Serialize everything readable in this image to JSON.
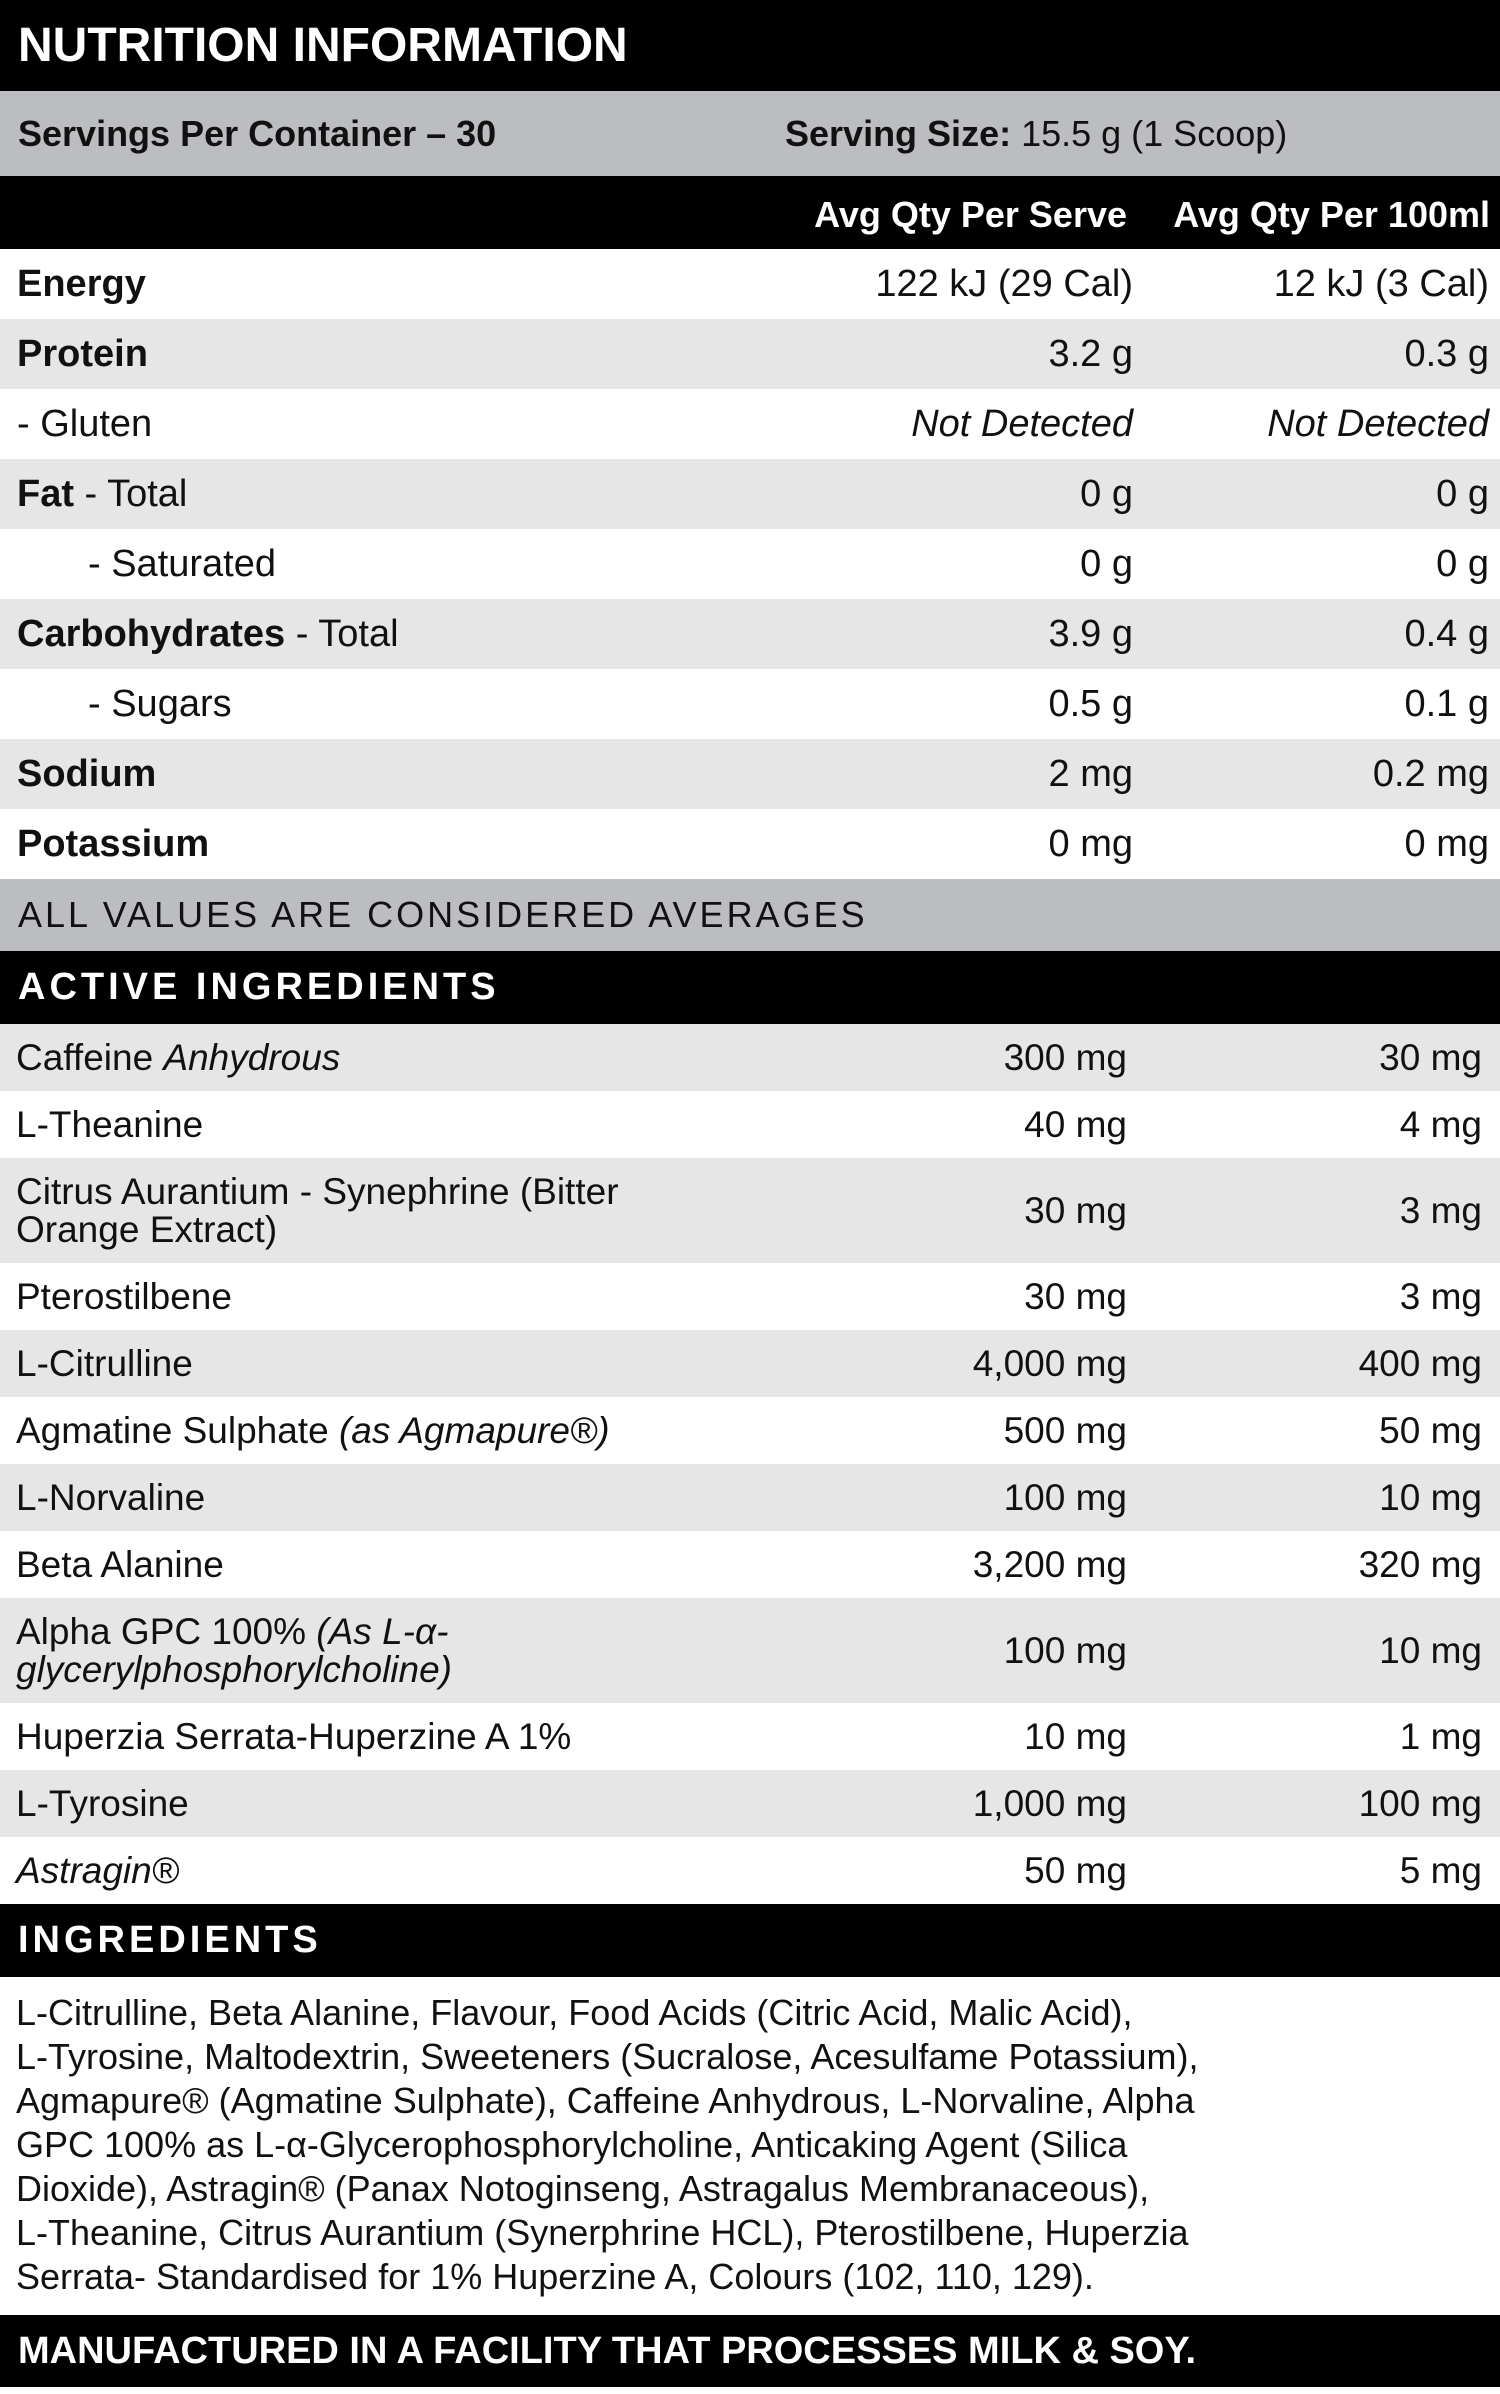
{
  "title": "NUTRITION INFORMATION",
  "servings": {
    "per_container": "Servings Per Container – 30",
    "size_label": "Serving Size:",
    "size_value": " 15.5 g (1 Scoop)"
  },
  "columns": {
    "per_serve": "Avg Qty Per Serve",
    "per_100ml": "Avg Qty Per 100ml"
  },
  "nutrition_rows": [
    {
      "bold": "Energy",
      "normal": "",
      "indent": false,
      "italic_values": false,
      "per_serve": "122 kJ (29 Cal)",
      "per_100ml": "12 kJ (3 Cal)"
    },
    {
      "bold": "Protein",
      "normal": "",
      "indent": false,
      "italic_values": false,
      "per_serve": "3.2 g",
      "per_100ml": "0.3 g"
    },
    {
      "bold": "",
      "normal": "- Gluten",
      "indent": false,
      "italic_values": true,
      "per_serve": "Not Detected",
      "per_100ml": "Not Detected"
    },
    {
      "bold": "Fat",
      "normal": " - Total",
      "indent": false,
      "italic_values": false,
      "per_serve": "0 g",
      "per_100ml": "0 g"
    },
    {
      "bold": "",
      "normal": "- Saturated",
      "indent": true,
      "italic_values": false,
      "per_serve": "0 g",
      "per_100ml": "0 g"
    },
    {
      "bold": "Carbohydrates",
      "normal": " - Total",
      "indent": false,
      "italic_values": false,
      "per_serve": "3.9 g",
      "per_100ml": "0.4 g"
    },
    {
      "bold": "",
      "normal": "- Sugars",
      "indent": true,
      "italic_values": false,
      "per_serve": "0.5 g",
      "per_100ml": "0.1 g"
    },
    {
      "bold": "Sodium",
      "normal": "",
      "indent": false,
      "italic_values": false,
      "per_serve": "2 mg",
      "per_100ml": "0.2 mg"
    },
    {
      "bold": "Potassium",
      "normal": "",
      "indent": false,
      "italic_values": false,
      "per_serve": "0 mg",
      "per_100ml": "0 mg"
    }
  ],
  "averages_note": "ALL VALUES ARE CONSIDERED AVERAGES",
  "active_heading": "ACTIVE INGREDIENTS",
  "active_rows": [
    {
      "name": "Caffeine ",
      "italic": "Anhydrous",
      "per_serve": "300 mg",
      "per_100ml": "30 mg"
    },
    {
      "name": "L-Theanine",
      "italic": "",
      "per_serve": "40 mg",
      "per_100ml": "4 mg"
    },
    {
      "name": "Citrus Aurantium - Synephrine (Bitter Orange Extract)",
      "italic": "",
      "per_serve": "30 mg",
      "per_100ml": "3 mg",
      "tall": true
    },
    {
      "name": "Pterostilbene",
      "italic": "",
      "per_serve": "30 mg",
      "per_100ml": "3 mg"
    },
    {
      "name": "L-Citrulline",
      "italic": "",
      "per_serve": "4,000 mg",
      "per_100ml": "400 mg"
    },
    {
      "name": "Agmatine Sulphate ",
      "italic": "(as Agmapure®)",
      "per_serve": "500 mg",
      "per_100ml": "50 mg"
    },
    {
      "name": "L-Norvaline",
      "italic": "",
      "per_serve": "100 mg",
      "per_100ml": "10 mg"
    },
    {
      "name": "Beta Alanine",
      "italic": "",
      "per_serve": "3,200 mg",
      "per_100ml": "320 mg"
    },
    {
      "name": "Alpha GPC 100% ",
      "italic": "(As L-α-glycerylphosphorylcholine)",
      "per_serve": "100 mg",
      "per_100ml": "10 mg",
      "tall": true
    },
    {
      "name": "Huperzia Serrata-Huperzine A 1%",
      "italic": "",
      "per_serve": "10 mg",
      "per_100ml": "1 mg"
    },
    {
      "name": "L-Tyrosine",
      "italic": "",
      "per_serve": "1,000 mg",
      "per_100ml": "100 mg"
    },
    {
      "name": "",
      "italic": "Astragin®",
      "per_serve": "50 mg",
      "per_100ml": "5 mg"
    }
  ],
  "ingredients_heading": "INGREDIENTS",
  "ingredients_lines": [
    "L-Citrulline, Beta Alanine, Flavour, Food Acids (Citric Acid, Malic Acid),",
    "L-Tyrosine, Maltodextrin, Sweeteners (Sucralose, Acesulfame Potassium),",
    "Agmapure® (Agmatine Sulphate), Caffeine Anhydrous, L-Norvaline, Alpha",
    "GPC 100% as L-α-Glycerophosphorylcholine, Anticaking Agent (Silica",
    "Dioxide), Astragin® (Panax Notoginseng, Astragalus Membranaceous),",
    "L-Theanine, Citrus Aurantium (Synerphrine HCL), Pterostilbene, Huperzia",
    "Serrata- Standardised for 1% Huperzine A, Colours (102, 110, 129)."
  ],
  "footer": "MANUFACTURED IN A FACILITY THAT PROCESSES MILK & SOY.",
  "colors": {
    "black": "#000000",
    "header_gray": "#bcbdc0",
    "stripe_gray": "#e6e6e7"
  }
}
